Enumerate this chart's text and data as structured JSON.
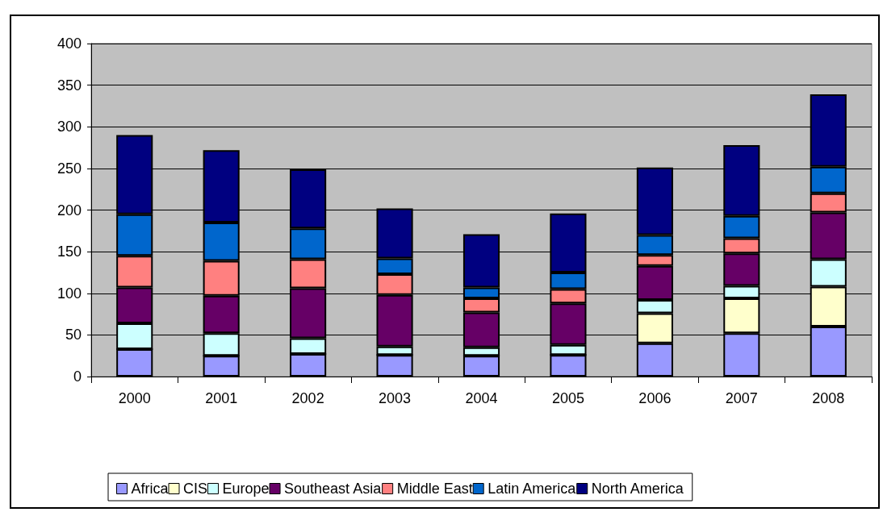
{
  "chart_data": {
    "type": "bar",
    "stacked": true,
    "categories": [
      "2000",
      "2001",
      "2002",
      "2003",
      "2004",
      "2005",
      "2006",
      "2007",
      "2008"
    ],
    "ylim": [
      0,
      400
    ],
    "yticks": [
      0,
      50,
      100,
      150,
      200,
      250,
      300,
      350,
      400
    ],
    "grid": "y",
    "legend": "bottom",
    "series": [
      {
        "name": "Africa",
        "color": "#9999ff",
        "values": [
          33,
          25,
          27,
          26,
          25,
          26,
          40,
          52,
          60
        ]
      },
      {
        "name": "CIS",
        "color": "#ffffcc",
        "values": [
          0,
          0,
          0,
          0,
          0,
          0,
          36,
          42,
          48
        ]
      },
      {
        "name": "Europe",
        "color": "#ccffff",
        "values": [
          31,
          27,
          19,
          10,
          10,
          12,
          16,
          15,
          33
        ]
      },
      {
        "name": "Southeast Asia",
        "color": "#660066",
        "values": [
          43,
          45,
          60,
          62,
          42,
          50,
          41,
          39,
          56
        ]
      },
      {
        "name": "Middle East",
        "color": "#ff8080",
        "values": [
          38,
          42,
          35,
          25,
          17,
          17,
          13,
          18,
          23
        ]
      },
      {
        "name": "Latin America",
        "color": "#0066cc",
        "values": [
          50,
          46,
          37,
          19,
          13,
          20,
          24,
          27,
          32
        ]
      },
      {
        "name": "North America",
        "color": "#000080",
        "values": [
          95,
          87,
          71,
          60,
          64,
          71,
          81,
          85,
          87
        ]
      }
    ]
  }
}
